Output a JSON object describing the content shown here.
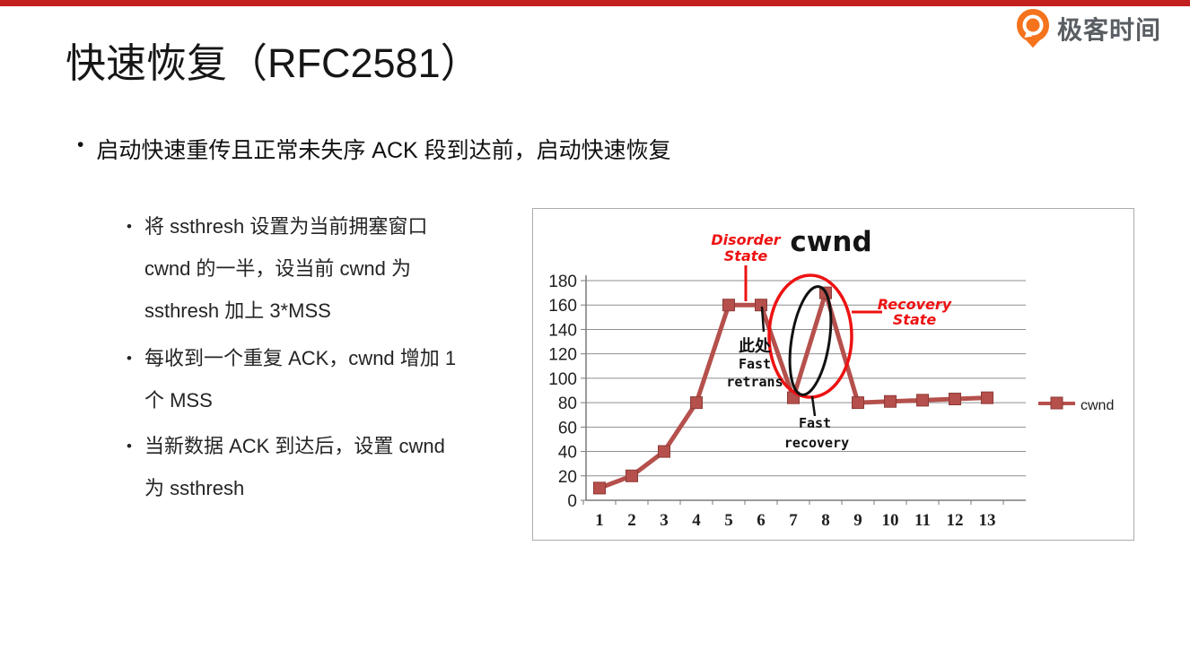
{
  "page": {
    "top_bar_color": "#c4201f",
    "background": "#ffffff"
  },
  "brand": {
    "logo_text": "极客时间",
    "logo_icon_color": "#f4731c",
    "logo_text_color": "#595e63"
  },
  "title": "快速恢复（RFC2581）",
  "bullet_char": "•",
  "bullets": {
    "main": "启动快速重传且正常未失序 ACK 段到达前，启动快速恢复",
    "sub": [
      {
        "lines": [
          "将 ssthresh 设置为当前拥塞窗口",
          "cwnd 的一半，设当前 cwnd 为",
          "ssthresh 加上 3*MSS"
        ]
      },
      {
        "lines": [
          "每收到一个重复 ACK，cwnd 增加 1",
          "个 MSS"
        ]
      },
      {
        "lines": [
          "当新数据 ACK 到达后，设置 cwnd",
          "为 ssthresh"
        ]
      }
    ]
  },
  "chart_data": {
    "type": "line",
    "title": "cwnd",
    "x": [
      1,
      2,
      3,
      4,
      5,
      6,
      7,
      8,
      9,
      10,
      11,
      12,
      13
    ],
    "series": [
      {
        "name": "cwnd",
        "color": "#b5504c",
        "marker": "square",
        "values": [
          10,
          20,
          40,
          80,
          160,
          160,
          84,
          170,
          80,
          81,
          82,
          83,
          84
        ]
      }
    ],
    "ylim": [
      0,
      180
    ],
    "ytick_step": 20,
    "grid": true,
    "grid_color": "#8f8f8f",
    "axis_color": "#7a7a7a",
    "legend_position": "right",
    "annotation_red": "#ed1212",
    "annotations": [
      {
        "id": "disorder",
        "lines": [
          "Disorder",
          "State"
        ],
        "color": "#ed1212",
        "style": "bold-italic"
      },
      {
        "id": "recovery",
        "lines": [
          "Recovery",
          "State"
        ],
        "color": "#ed1212",
        "style": "bold-italic"
      },
      {
        "id": "fast-retrans",
        "lines": [
          "此处",
          "Fast",
          "retrans"
        ],
        "color": "#111111",
        "style": "bold"
      },
      {
        "id": "fast-recovery",
        "lines": [
          "Fast",
          "recovery"
        ],
        "color": "#111111",
        "style": "bold"
      }
    ]
  }
}
